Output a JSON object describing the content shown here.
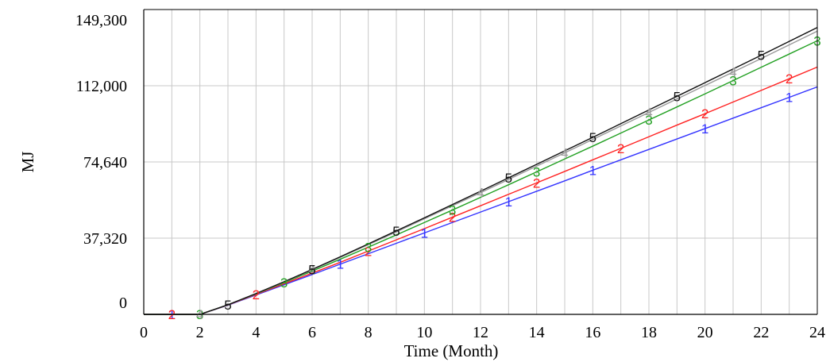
{
  "chart_data": {
    "type": "line",
    "xlabel": "Time (Month)",
    "ylabel": "MJ",
    "xlim": [
      0,
      24
    ],
    "ylim": [
      0,
      149300
    ],
    "x_ticks": [
      "0",
      "2",
      "4",
      "6",
      "8",
      "10",
      "12",
      "14",
      "16",
      "18",
      "20",
      "22",
      "24"
    ],
    "y_ticks": [
      "0",
      "37,320",
      "74,640",
      "112,000",
      "149,300"
    ],
    "y_tick_values": [
      0,
      37320,
      74640,
      112000,
      149300
    ],
    "grid": true,
    "series": [
      {
        "name": "1",
        "color": "#3333ff",
        "x": [
          0,
          1,
          2,
          3,
          4,
          5,
          6,
          7,
          8,
          9,
          10,
          11,
          12,
          13,
          14,
          15,
          16,
          17,
          18,
          19,
          20,
          21,
          22,
          23,
          24
        ],
        "y": [
          0,
          0,
          0,
          4500,
          9500,
          14500,
          19500,
          24600,
          29700,
          34800,
          39900,
          45000,
          50100,
          55200,
          60300,
          65400,
          70600,
          75700,
          80800,
          85900,
          91000,
          96100,
          101200,
          106300,
          111400
        ]
      },
      {
        "name": "2",
        "color": "#ff2222",
        "x": [
          0,
          1,
          2,
          3,
          4,
          5,
          6,
          7,
          8,
          9,
          10,
          11,
          12,
          13,
          14,
          15,
          16,
          17,
          18,
          19,
          20,
          21,
          22,
          23,
          24
        ],
        "y": [
          0,
          0,
          0,
          4600,
          9800,
          15000,
          20200,
          25500,
          31000,
          36500,
          42000,
          47600,
          53200,
          58800,
          64400,
          70000,
          75700,
          81300,
          87000,
          92700,
          98300,
          104000,
          109700,
          115400,
          121100
        ]
      },
      {
        "name": "3",
        "color": "#22a022",
        "x": [
          0,
          1,
          2,
          3,
          4,
          5,
          6,
          7,
          8,
          9,
          10,
          11,
          12,
          13,
          14,
          15,
          16,
          17,
          18,
          19,
          20,
          21,
          22,
          23,
          24
        ],
        "y": [
          0,
          0,
          0,
          4700,
          10000,
          15500,
          21200,
          27000,
          32900,
          38900,
          45000,
          51100,
          57300,
          63500,
          69800,
          76100,
          82400,
          88800,
          95200,
          101600,
          108000,
          114500,
          121000,
          127500,
          134000
        ]
      },
      {
        "name": "4",
        "color": "#999999",
        "x": [
          0,
          1,
          2,
          3,
          4,
          5,
          6,
          7,
          8,
          9,
          10,
          11,
          12,
          13,
          14,
          15,
          16,
          17,
          18,
          19,
          20,
          21,
          22,
          23,
          24
        ],
        "y": [
          0,
          0,
          0,
          4700,
          10100,
          15800,
          21800,
          27900,
          34100,
          40400,
          46800,
          53200,
          59600,
          66100,
          72600,
          79100,
          85700,
          92300,
          98900,
          105500,
          112100,
          118700,
          125300,
          132000,
          138700
        ]
      },
      {
        "name": "5",
        "color": "#111111",
        "x": [
          0,
          1,
          2,
          3,
          4,
          5,
          6,
          7,
          8,
          9,
          10,
          11,
          12,
          13,
          14,
          15,
          16,
          17,
          18,
          19,
          20,
          21,
          22,
          23,
          24
        ],
        "y": [
          0,
          0,
          0,
          4700,
          10200,
          16000,
          22000,
          28200,
          34500,
          40900,
          47300,
          53800,
          60300,
          66900,
          73500,
          80100,
          86700,
          93400,
          100100,
          106800,
          113500,
          120200,
          126900,
          133700,
          140500
        ]
      }
    ],
    "markers": [
      {
        "series": 0,
        "x": [
          1,
          7,
          10,
          13,
          16,
          20,
          23
        ]
      },
      {
        "series": 1,
        "x": [
          1,
          4,
          8,
          11,
          14,
          17,
          20,
          23
        ]
      },
      {
        "series": 2,
        "x": [
          2,
          5,
          8,
          11,
          14,
          18,
          21,
          24
        ]
      },
      {
        "series": 3,
        "x": [
          2,
          6,
          12,
          15,
          18,
          21
        ]
      },
      {
        "series": 4,
        "x": [
          3,
          6,
          9,
          13,
          16,
          19,
          22
        ]
      }
    ]
  }
}
